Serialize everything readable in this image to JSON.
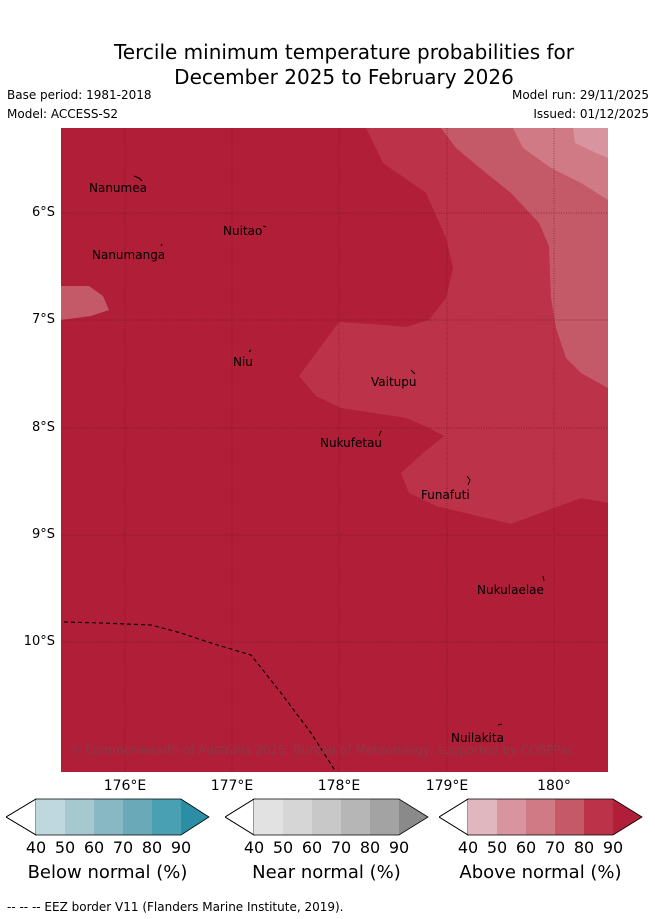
{
  "title": {
    "line1": "Tercile minimum temperature probabilities for",
    "line2": "December 2025 to February 2026"
  },
  "meta": {
    "base_period": "Base period: 1981-2018",
    "model": "Model: ACCESS-S2",
    "model_run": "Model run: 29/11/2025",
    "issued": "Issued: 01/12/2025"
  },
  "axes": {
    "y_labels": [
      "6°S",
      "7°S",
      "8°S",
      "9°S",
      "10°S"
    ],
    "x_labels": [
      "176°E",
      "177°E",
      "178°E",
      "179°E",
      "180°"
    ]
  },
  "places": [
    {
      "id": "nanumea",
      "name": "Nanumea"
    },
    {
      "id": "nuitao",
      "name": "Nuitao"
    },
    {
      "id": "nanumanga",
      "name": "Nanumanga"
    },
    {
      "id": "niu",
      "name": "Niu"
    },
    {
      "id": "vaitupu",
      "name": "Vaitupu"
    },
    {
      "id": "nukufetau",
      "name": "Nukufetau"
    },
    {
      "id": "funafuti",
      "name": "Funafuti"
    },
    {
      "id": "nukulaelae",
      "name": "Nukulaelae"
    },
    {
      "id": "nuilakita",
      "name": "Nuilakita"
    }
  ],
  "copyright": "© Commonwealth of Australia 2025, Bureau of Meteorology, supported by COSPPac",
  "legends": {
    "below": {
      "title": "Below normal (%)",
      "ticks": [
        "40",
        "50",
        "60",
        "70",
        "80",
        "90"
      ],
      "colors": [
        "#bfd8dd",
        "#a6c9d0",
        "#88b8c4",
        "#6aa9b8",
        "#48a0b2",
        "#2b8ea4"
      ]
    },
    "near": {
      "title": "Near normal (%)",
      "ticks": [
        "40",
        "50",
        "60",
        "70",
        "80",
        "90"
      ],
      "colors": [
        "#e2e2e2",
        "#d6d6d6",
        "#c8c8c8",
        "#b6b6b6",
        "#a3a3a3",
        "#8a8a8a"
      ]
    },
    "above": {
      "title": "Above normal (%)",
      "ticks": [
        "40",
        "50",
        "60",
        "70",
        "80",
        "90"
      ],
      "colors": [
        "#e1b7bf",
        "#d8959f",
        "#cf7a85",
        "#c45a68",
        "#bb3249",
        "#b01e37"
      ]
    }
  },
  "footnote": "--  --  -- EEZ border V11 (Flanders Marine Institute, 2019)."
}
